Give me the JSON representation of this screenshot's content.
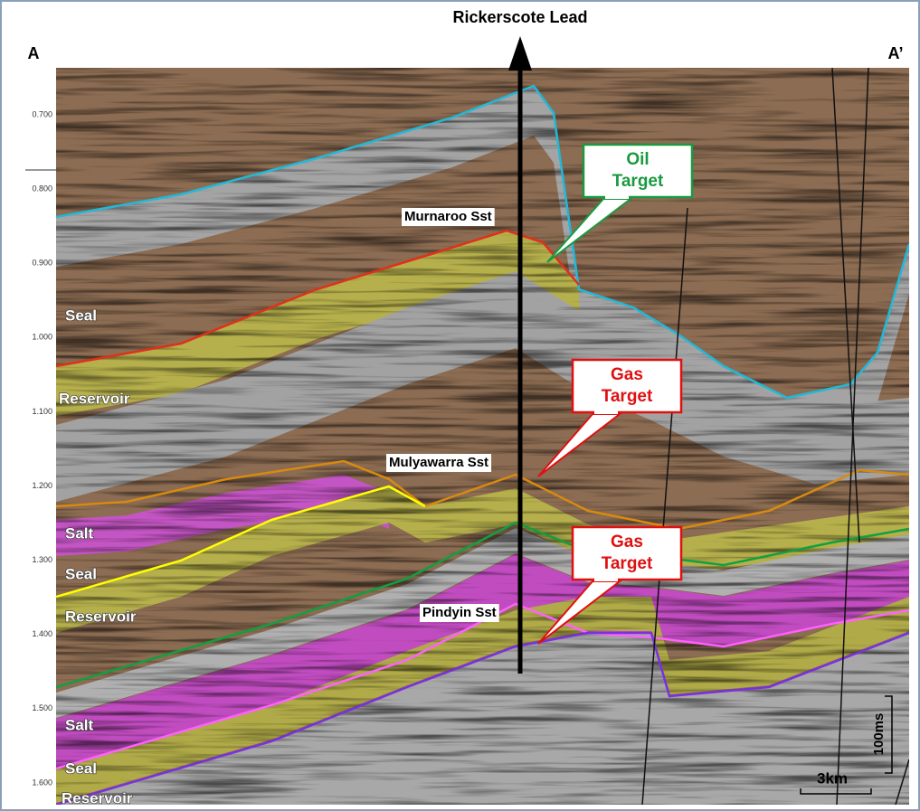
{
  "header": {
    "title": "Rickerscote Lead",
    "left_end": "A",
    "right_end": "A’"
  },
  "time_axis": [
    "0.700",
    "0.800",
    "0.900",
    "1.000",
    "1.100",
    "1.200",
    "1.300",
    "1.400",
    "1.500",
    "1.600"
  ],
  "horizon_labels": [
    "Murnaroo Sst",
    "Mulyawarra Sst",
    "Pindyin Sst"
  ],
  "callouts": [
    {
      "line1": "Oil",
      "line2": "Target"
    },
    {
      "line1": "Gas",
      "line2": "Target"
    },
    {
      "line1": "Gas",
      "line2": "Target"
    }
  ],
  "layer_labels": [
    "Seal",
    "Reservoir",
    "Salt",
    "Seal",
    "Reservoir",
    "Salt",
    "Seal",
    "Reservoir"
  ],
  "scale": {
    "vertical": "100ms",
    "horizontal": "3km"
  }
}
